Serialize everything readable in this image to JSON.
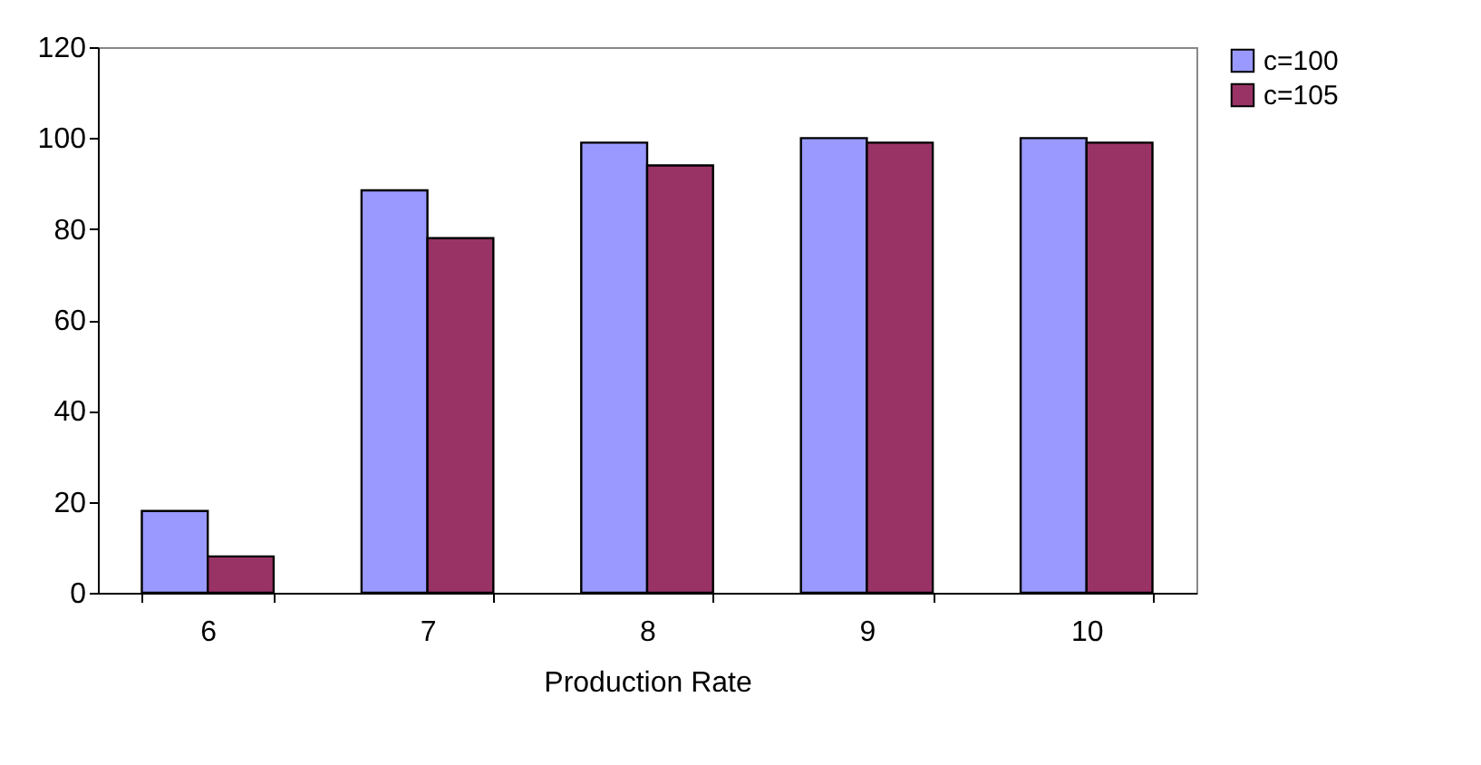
{
  "chart_data": {
    "type": "bar",
    "xlabel": "Production Rate",
    "categories": [
      "6",
      "7",
      "8",
      "9",
      "10"
    ],
    "series": [
      {
        "name": "c=100",
        "color": "#9999ff",
        "values": [
          18,
          88.5,
          99,
          100,
          100
        ]
      },
      {
        "name": "c=105",
        "color": "#993366",
        "values": [
          8,
          78,
          94,
          99,
          99
        ]
      }
    ],
    "ylim": [
      0,
      120
    ],
    "yticks": [
      0,
      20,
      40,
      60,
      80,
      100,
      120
    ],
    "grid": false,
    "legend": "right"
  }
}
